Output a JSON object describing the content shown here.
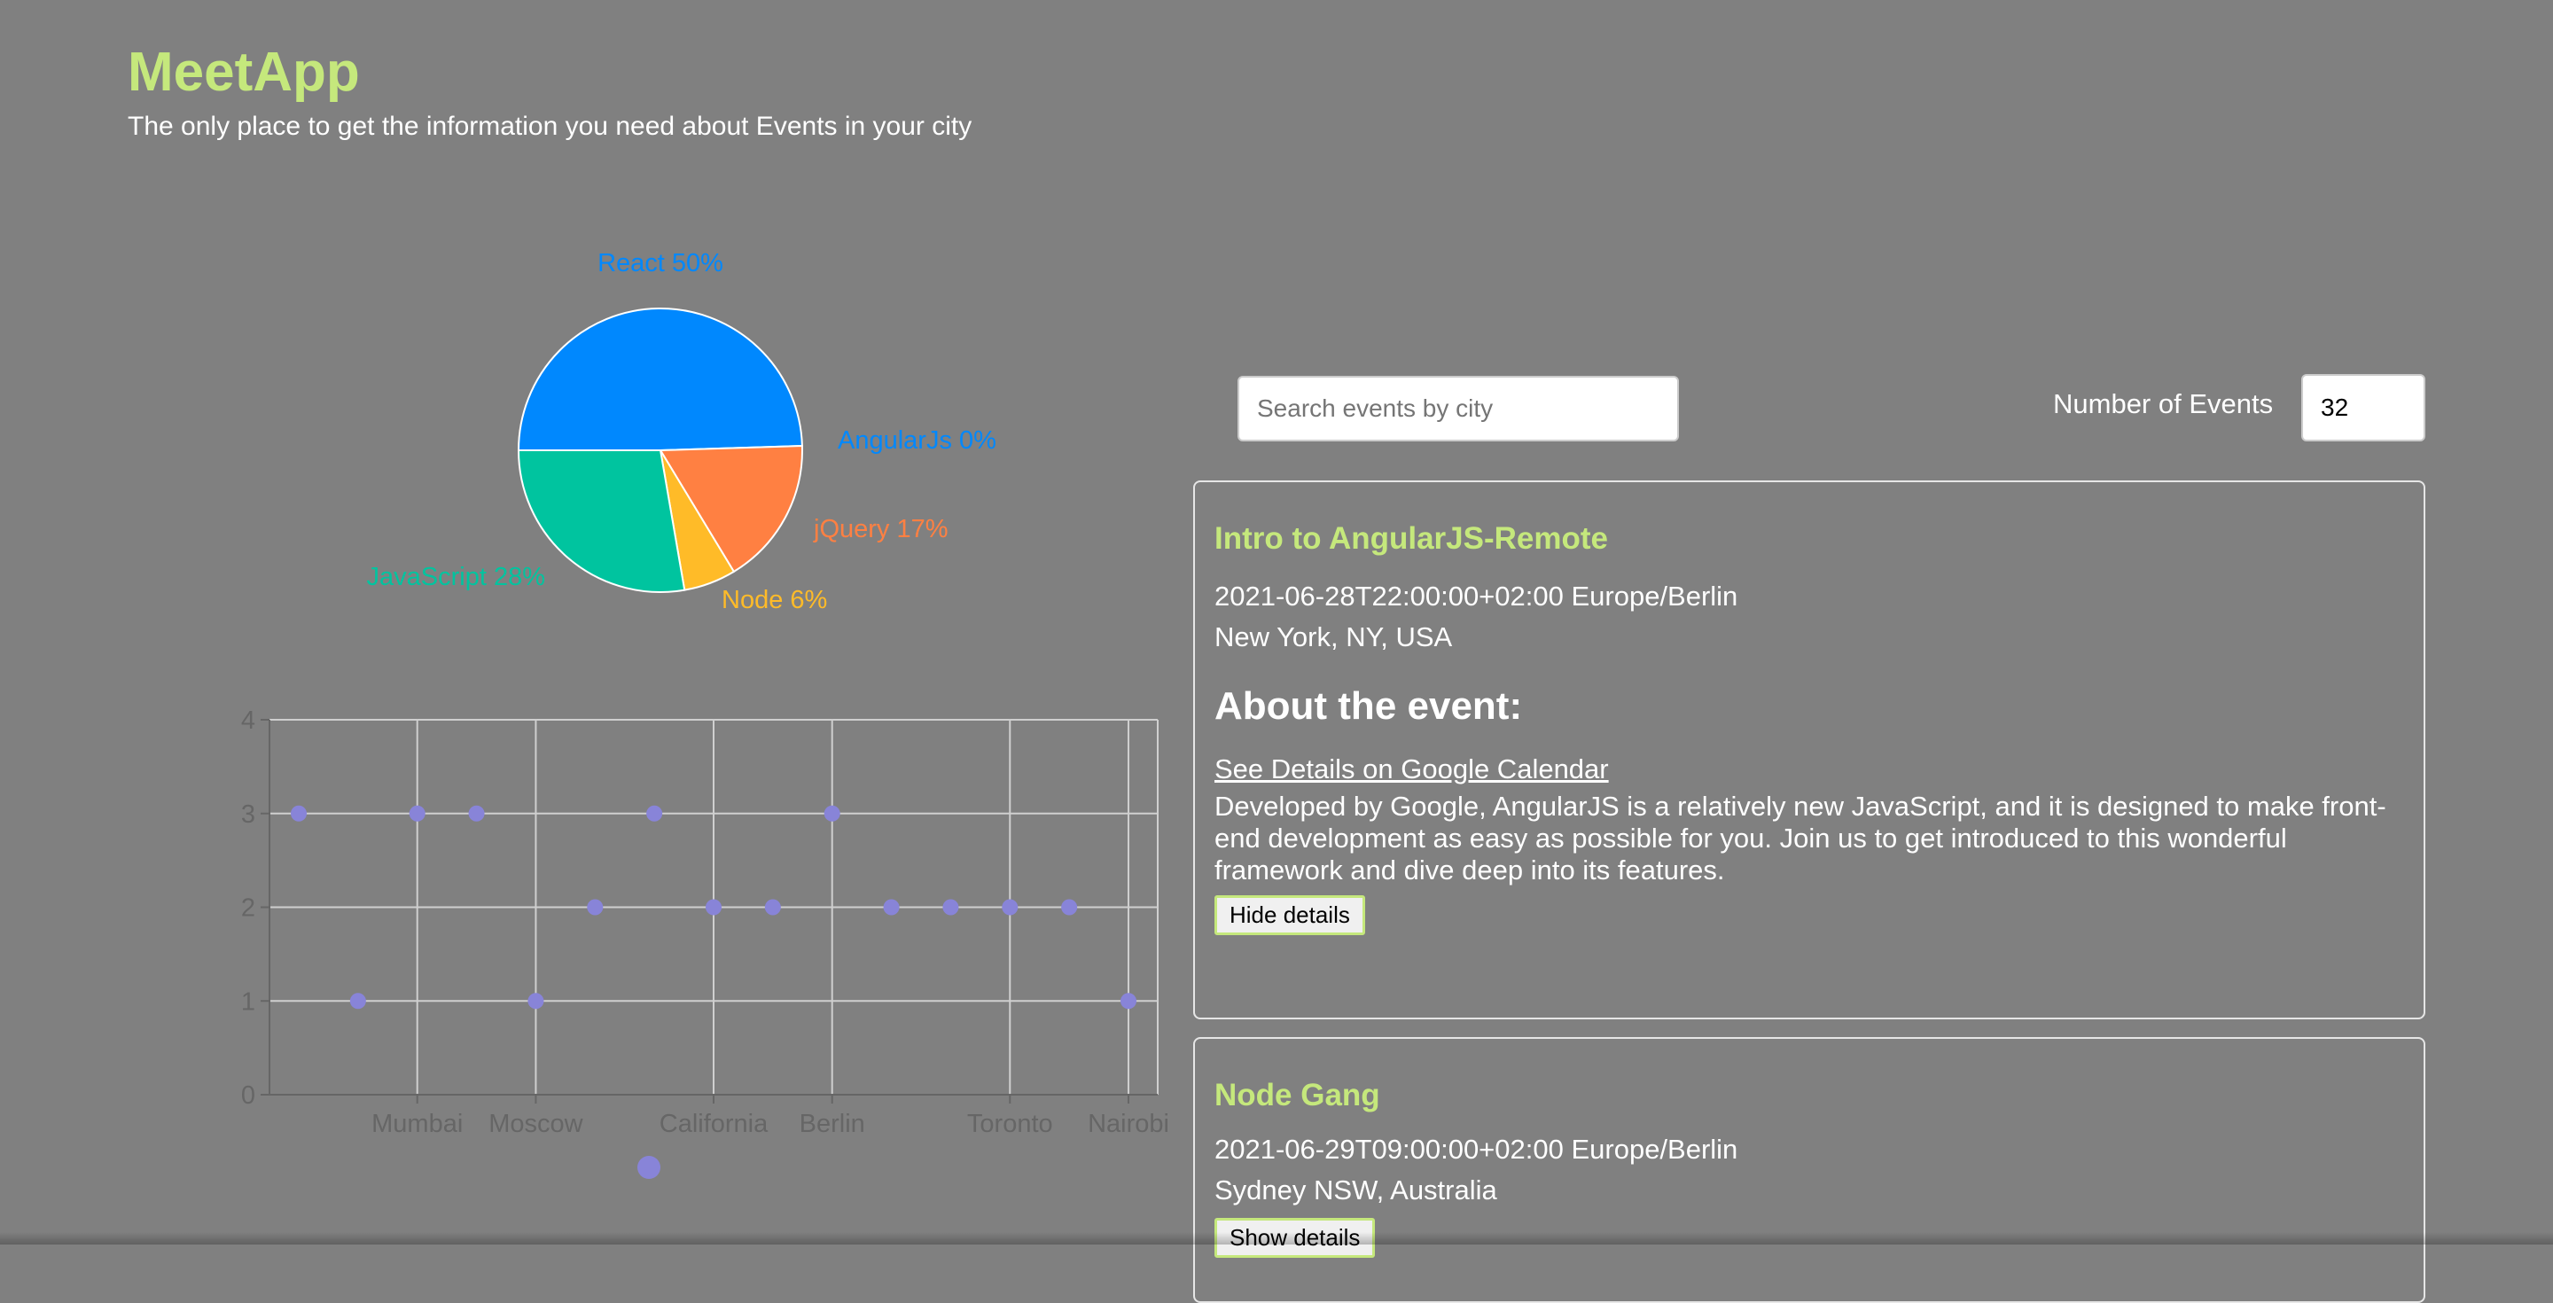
{
  "header": {
    "title": "MeetApp",
    "subtitle": "The only place to get the information you need about Events in your city"
  },
  "chart_data": [
    {
      "type": "pie",
      "slices": [
        {
          "label": "React",
          "value": 50,
          "display": "React 50%",
          "color": "#0088FE"
        },
        {
          "label": "AngularJs",
          "value": 0,
          "display": "AngularJs 0%",
          "color": "#0088FE"
        },
        {
          "label": "jQuery",
          "value": 17,
          "display": "jQuery 17%",
          "color": "#FF8042"
        },
        {
          "label": "Node",
          "value": 6,
          "display": "Node 6%",
          "color": "#FFBB28"
        },
        {
          "label": "JavaScript",
          "value": 28,
          "display": "JavaScript 28%",
          "color": "#00C49F"
        }
      ]
    },
    {
      "type": "scatter",
      "ylim": [
        0,
        4
      ],
      "yticks": [
        0,
        1,
        2,
        3,
        4
      ],
      "xtick_labels": [
        "Mumbai",
        "Moscow",
        "California",
        "Berlin",
        "Toronto",
        "Nairobi"
      ],
      "point_color": "#8884d8",
      "points": [
        {
          "x": 0,
          "y": 3
        },
        {
          "x": 1,
          "y": 1
        },
        {
          "x": 2,
          "y": 3,
          "label": "Mumbai"
        },
        {
          "x": 3,
          "y": 3
        },
        {
          "x": 4,
          "y": 1,
          "label": "Moscow"
        },
        {
          "x": 5,
          "y": 2
        },
        {
          "x": 6,
          "y": 3
        },
        {
          "x": 7,
          "y": 2,
          "label": "California"
        },
        {
          "x": 8,
          "y": 2
        },
        {
          "x": 9,
          "y": 3,
          "label": "Berlin"
        },
        {
          "x": 10,
          "y": 2
        },
        {
          "x": 11,
          "y": 2
        },
        {
          "x": 12,
          "y": 2,
          "label": "Toronto"
        },
        {
          "x": 13,
          "y": 2
        },
        {
          "x": 14,
          "y": 1,
          "label": "Nairobi"
        }
      ],
      "legend": "bottom"
    }
  ],
  "search": {
    "placeholder": "Search events by city",
    "value": ""
  },
  "number_of_events": {
    "label": "Number of Events",
    "value": "32"
  },
  "events": [
    {
      "title": "Intro to AngularJS-Remote",
      "datetime": "2021-06-28T22:00:00+02:00 Europe/Berlin",
      "location": "New York, NY, USA",
      "about_heading": "About the event:",
      "link_text": "See Details on Google Calendar",
      "description": "Developed by Google, AngularJS is a relatively new JavaScript, and it is designed to make front-end development as easy as possible for you. Join us to get introduced to this wonderful framework and dive deep into its features.",
      "button_label": "Hide details"
    },
    {
      "title": "Node Gang",
      "datetime": "2021-06-29T09:00:00+02:00 Europe/Berlin",
      "location": "Sydney NSW, Australia",
      "button_label": "Show details"
    }
  ]
}
